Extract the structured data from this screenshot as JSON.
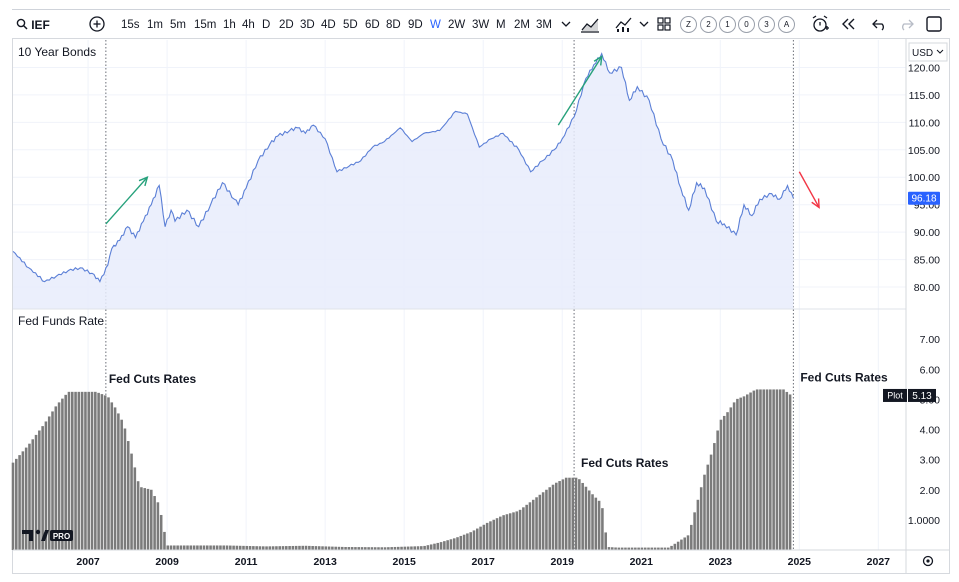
{
  "toolbar": {
    "symbol": "IEF",
    "intervals": [
      "15s",
      "1m",
      "5m",
      "15m",
      "1h",
      "4h",
      "D",
      "2D",
      "3D",
      "4D",
      "5D",
      "6D",
      "8D",
      "9D",
      "W",
      "2W",
      "3W",
      "M",
      "2M",
      "3M"
    ],
    "active_interval": "W",
    "indicator_badges": [
      "Z",
      "2",
      "1",
      "0",
      "3",
      "A"
    ],
    "icons": [
      "search-icon",
      "add-compare-icon",
      "chevron-down-icon",
      "bar-style-icon",
      "indicators-icon",
      "chevron-down-icon",
      "layout-grid-icon",
      "alert-icon",
      "replay-icon",
      "undo-icon",
      "redo-icon",
      "fullscreen-icon"
    ]
  },
  "watermark": "PRO",
  "chart_data": [
    {
      "type": "area",
      "pane_title": "10 Year Bonds",
      "currency": "USD",
      "last_value_label": "96.18",
      "ylim": [
        76,
        125
      ],
      "yticks": [
        "80.00",
        "85.00",
        "90.00",
        "95.00",
        "100.00",
        "105.00",
        "110.00",
        "115.00",
        "120.00"
      ],
      "series": [
        {
          "x": [
            2005.1,
            2005.5,
            2005.9,
            2006.2,
            2006.5,
            2006.8,
            2007.1,
            2007.3,
            2007.5,
            2007.6,
            2007.8,
            2008.0,
            2008.2,
            2008.4,
            2008.6,
            2008.8,
            2008.95,
            2009.1,
            2009.2,
            2009.5,
            2009.8,
            2010.1,
            2010.4,
            2010.7,
            2010.8,
            2011.0,
            2011.3,
            2011.6,
            2011.8,
            2012.1,
            2012.3,
            2012.5,
            2012.7,
            2013.0,
            2013.3,
            2013.6,
            2013.9,
            2014.2,
            2014.5,
            2014.9,
            2015.2,
            2015.5,
            2015.9,
            2016.3,
            2016.6,
            2016.9,
            2017.2,
            2017.5,
            2017.9,
            2018.2,
            2018.5,
            2018.8,
            2019.0,
            2019.3,
            2019.6,
            2019.8,
            2020.0,
            2020.2,
            2020.5,
            2020.7,
            2020.9,
            2021.2,
            2021.5,
            2021.8,
            2022.0,
            2022.2,
            2022.4,
            2022.6,
            2022.9,
            2023.1,
            2023.4,
            2023.6,
            2023.8,
            2024.0,
            2024.3,
            2024.5,
            2024.7,
            2024.85
          ],
          "values": [
            86.5,
            83.5,
            81.0,
            82.0,
            83.0,
            83.5,
            82.5,
            81.0,
            84.0,
            87.0,
            88.5,
            91.0,
            89.0,
            92.0,
            95.0,
            98.5,
            91.0,
            94.0,
            92.0,
            94.0,
            91.0,
            95.0,
            99.0,
            96.0,
            95.0,
            98.0,
            103.0,
            106.0,
            107.5,
            108.5,
            109.0,
            108.0,
            109.5,
            107.0,
            101.0,
            102.0,
            103.0,
            105.5,
            106.5,
            109.0,
            106.5,
            108.0,
            108.5,
            112.0,
            111.5,
            105.5,
            107.0,
            108.0,
            105.0,
            101.0,
            103.0,
            105.0,
            107.0,
            111.0,
            118.0,
            120.5,
            122.5,
            119.0,
            120.0,
            114.0,
            116.5,
            114.0,
            107.0,
            103.0,
            98.0,
            94.0,
            99.0,
            98.0,
            92.0,
            91.5,
            89.5,
            95.0,
            93.0,
            96.0,
            97.0,
            96.0,
            98.5,
            96.18
          ]
        }
      ]
    },
    {
      "type": "bar",
      "pane_title": "Fed Funds Rate",
      "last_value_tag": "Plot",
      "last_value_label": "5.13",
      "ylim": [
        0,
        8
      ],
      "yticks": [
        "1.0000",
        "2.00",
        "3.00",
        "4.00",
        "5.00",
        "6.00",
        "7.00"
      ],
      "series": [
        {
          "x": [
            2005.1,
            2005.5,
            2005.9,
            2006.2,
            2006.5,
            2006.8,
            2007.2,
            2007.5,
            2007.7,
            2007.9,
            2008.1,
            2008.3,
            2008.6,
            2008.8,
            2009.0,
            2009.5,
            2010.5,
            2011.5,
            2012.5,
            2013.5,
            2014.5,
            2015.5,
            2015.9,
            2016.3,
            2016.7,
            2017.1,
            2017.5,
            2017.9,
            2018.2,
            2018.5,
            2018.8,
            2019.1,
            2019.4,
            2019.6,
            2019.8,
            2020.0,
            2020.15,
            2020.4,
            2021.0,
            2021.7,
            2022.2,
            2022.4,
            2022.6,
            2022.8,
            2023.0,
            2023.2,
            2023.4,
            2023.6,
            2023.9,
            2024.3,
            2024.6,
            2024.8
          ],
          "values": [
            2.9,
            3.5,
            4.2,
            4.8,
            5.25,
            5.25,
            5.25,
            5.1,
            4.7,
            4.2,
            3.2,
            2.1,
            2.0,
            1.5,
            0.15,
            0.15,
            0.15,
            0.12,
            0.14,
            0.1,
            0.09,
            0.13,
            0.25,
            0.4,
            0.6,
            0.9,
            1.15,
            1.3,
            1.6,
            1.9,
            2.2,
            2.4,
            2.4,
            2.1,
            1.8,
            1.55,
            0.1,
            0.08,
            0.08,
            0.08,
            0.5,
            1.5,
            2.5,
            3.3,
            4.3,
            4.6,
            5.0,
            5.1,
            5.33,
            5.33,
            5.33,
            5.13
          ]
        }
      ]
    }
  ],
  "x_axis": {
    "range": [
      2005.1,
      2027.7
    ],
    "ticks": [
      "2007",
      "2009",
      "2011",
      "2013",
      "2015",
      "2017",
      "2019",
      "2021",
      "2023",
      "2025",
      "2027"
    ]
  },
  "annotations": [
    {
      "text": "Fed Cuts Rates",
      "year": 2007.45,
      "rate": 5.45
    },
    {
      "text": "Fed Cuts Rates",
      "year": 2019.4,
      "rate": 2.65
    },
    {
      "text": "Fed Cuts Rates",
      "year": 2024.95,
      "rate": 5.5
    }
  ],
  "vertical_markers": [
    2007.45,
    2019.3,
    2024.85
  ],
  "arrows": [
    {
      "color": "#26a17b",
      "from": [
        2007.45,
        91.5
      ],
      "to": [
        2008.5,
        100.0
      ]
    },
    {
      "color": "#26a17b",
      "from": [
        2018.9,
        109.5
      ],
      "to": [
        2020.0,
        122.0
      ]
    },
    {
      "color": "#f23645",
      "from": [
        2025.0,
        101.0
      ],
      "to": [
        2025.5,
        94.5
      ]
    }
  ],
  "colors": {
    "line": "#5b7fd6",
    "fill": "#e7ecfb",
    "bars": "#7b7b7b",
    "grid": "#f0f3fa",
    "price_tag": "#2962ff",
    "plot_tag": "#131722",
    "axis_text": "#131722"
  }
}
